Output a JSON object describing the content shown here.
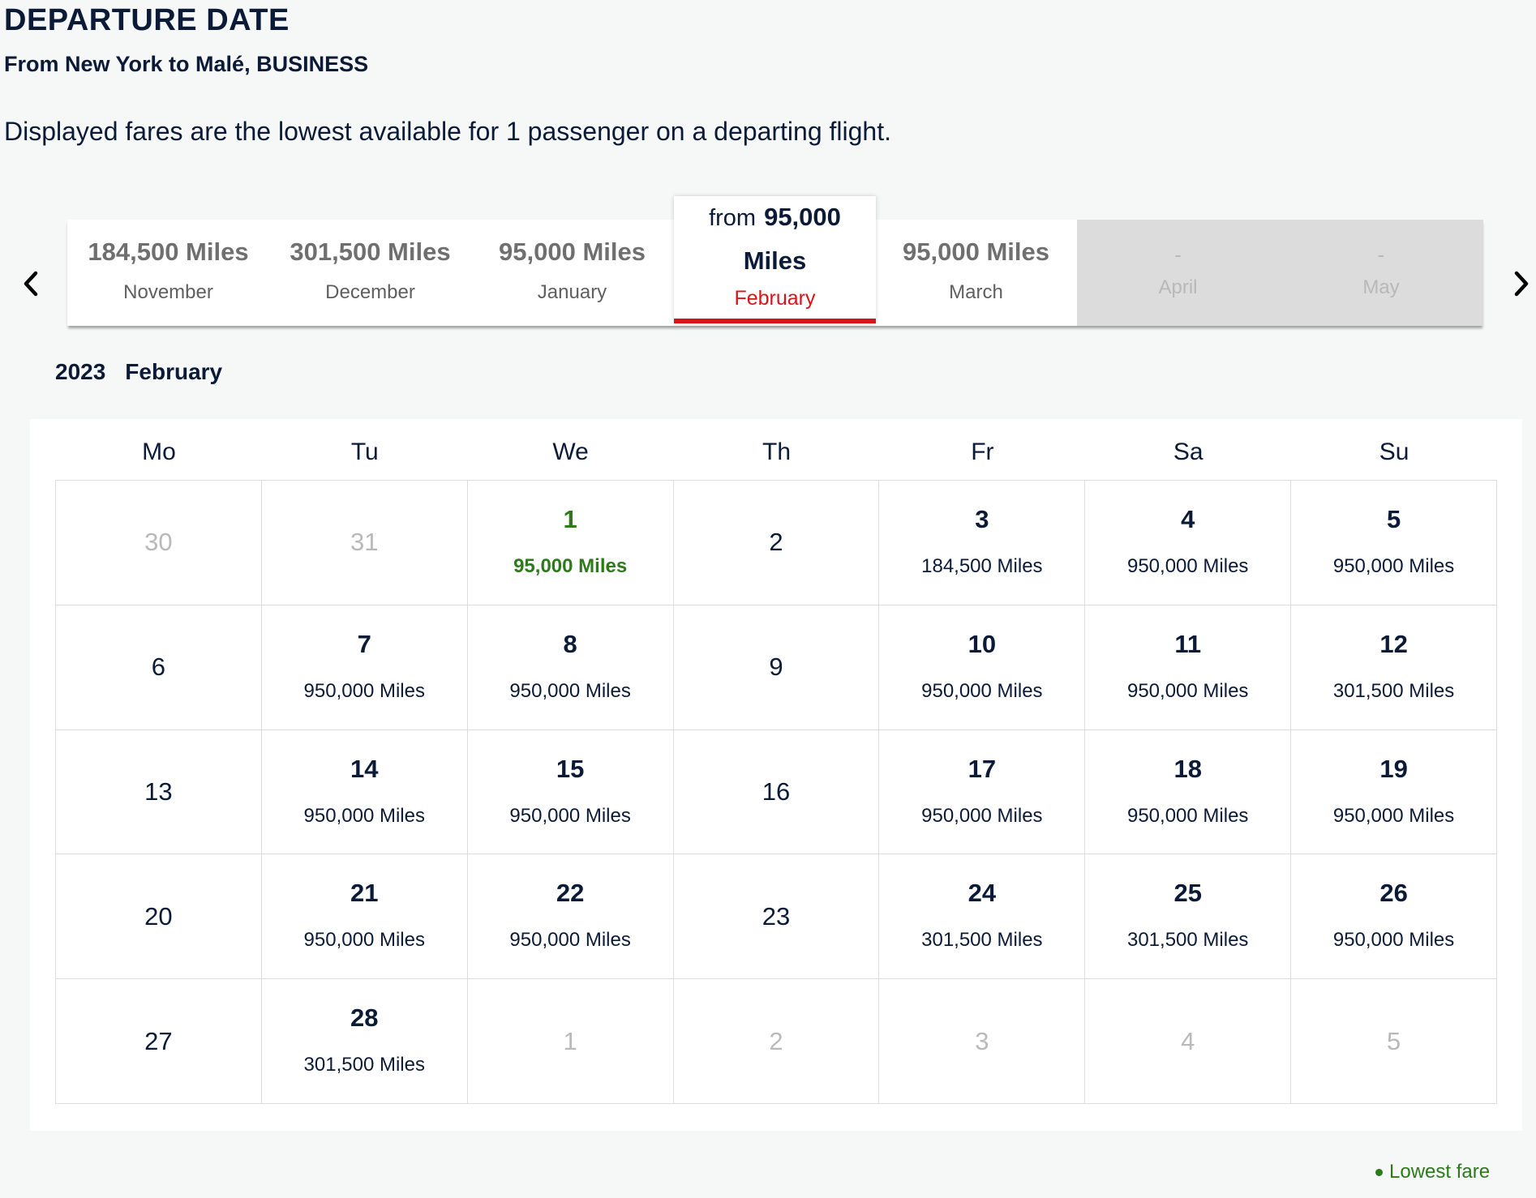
{
  "header": {
    "title": "DEPARTURE DATE",
    "route": "From New York to Malé, BUSINESS",
    "notice": "Displayed fares are the lowest available for 1 passenger on a departing flight."
  },
  "month_strip": {
    "items": [
      {
        "fare": "184,500 Miles",
        "month": "November",
        "state": "available"
      },
      {
        "fare": "301,500 Miles",
        "month": "December",
        "state": "available"
      },
      {
        "fare": "95,000 Miles",
        "month": "January",
        "state": "available"
      },
      {
        "fare": "",
        "month": "",
        "state": "selected"
      },
      {
        "fare": "95,000 Miles",
        "month": "March",
        "state": "available"
      },
      {
        "fare": "-",
        "month": "April",
        "state": "unavailable"
      },
      {
        "fare": "-",
        "month": "May",
        "state": "unavailable"
      }
    ],
    "selected": {
      "from_label": "from",
      "amount": "95,000",
      "unit": "Miles",
      "month": "February"
    },
    "prev_icon": "chevron-left-icon",
    "next_icon": "chevron-right-icon"
  },
  "calendar": {
    "year": "2023",
    "month": "February",
    "weekdays": [
      "Mo",
      "Tu",
      "We",
      "Th",
      "Fr",
      "Sa",
      "Su"
    ],
    "days": [
      {
        "day": "30",
        "fare": "",
        "type": "outside"
      },
      {
        "day": "31",
        "fare": "",
        "type": "outside"
      },
      {
        "day": "1",
        "fare": "95,000 Miles",
        "type": "lowest"
      },
      {
        "day": "2",
        "fare": "",
        "type": "nofare"
      },
      {
        "day": "3",
        "fare": "184,500 Miles",
        "type": "fare"
      },
      {
        "day": "4",
        "fare": "950,000 Miles",
        "type": "fare"
      },
      {
        "day": "5",
        "fare": "950,000 Miles",
        "type": "fare"
      },
      {
        "day": "6",
        "fare": "",
        "type": "nofare"
      },
      {
        "day": "7",
        "fare": "950,000 Miles",
        "type": "fare"
      },
      {
        "day": "8",
        "fare": "950,000 Miles",
        "type": "fare"
      },
      {
        "day": "9",
        "fare": "",
        "type": "nofare"
      },
      {
        "day": "10",
        "fare": "950,000 Miles",
        "type": "fare"
      },
      {
        "day": "11",
        "fare": "950,000 Miles",
        "type": "fare"
      },
      {
        "day": "12",
        "fare": "301,500 Miles",
        "type": "fare"
      },
      {
        "day": "13",
        "fare": "",
        "type": "nofare"
      },
      {
        "day": "14",
        "fare": "950,000 Miles",
        "type": "fare"
      },
      {
        "day": "15",
        "fare": "950,000 Miles",
        "type": "fare"
      },
      {
        "day": "16",
        "fare": "",
        "type": "nofare"
      },
      {
        "day": "17",
        "fare": "950,000 Miles",
        "type": "fare"
      },
      {
        "day": "18",
        "fare": "950,000 Miles",
        "type": "fare"
      },
      {
        "day": "19",
        "fare": "950,000 Miles",
        "type": "fare"
      },
      {
        "day": "20",
        "fare": "",
        "type": "nofare"
      },
      {
        "day": "21",
        "fare": "950,000 Miles",
        "type": "fare"
      },
      {
        "day": "22",
        "fare": "950,000 Miles",
        "type": "fare"
      },
      {
        "day": "23",
        "fare": "",
        "type": "nofare"
      },
      {
        "day": "24",
        "fare": "301,500 Miles",
        "type": "fare"
      },
      {
        "day": "25",
        "fare": "301,500 Miles",
        "type": "fare"
      },
      {
        "day": "26",
        "fare": "950,000 Miles",
        "type": "fare"
      },
      {
        "day": "27",
        "fare": "",
        "type": "nofare"
      },
      {
        "day": "28",
        "fare": "301,500 Miles",
        "type": "fare"
      },
      {
        "day": "1",
        "fare": "",
        "type": "outside"
      },
      {
        "day": "2",
        "fare": "",
        "type": "outside"
      },
      {
        "day": "3",
        "fare": "",
        "type": "outside"
      },
      {
        "day": "4",
        "fare": "",
        "type": "outside"
      },
      {
        "day": "5",
        "fare": "",
        "type": "outside"
      }
    ]
  },
  "legend": {
    "label": "Lowest fare"
  },
  "colors": {
    "navy_text": "#0b1a36",
    "accent_red": "#d7141a",
    "lowest_green": "#2c7a1a",
    "disabled_gray": "#dcdcdc"
  }
}
